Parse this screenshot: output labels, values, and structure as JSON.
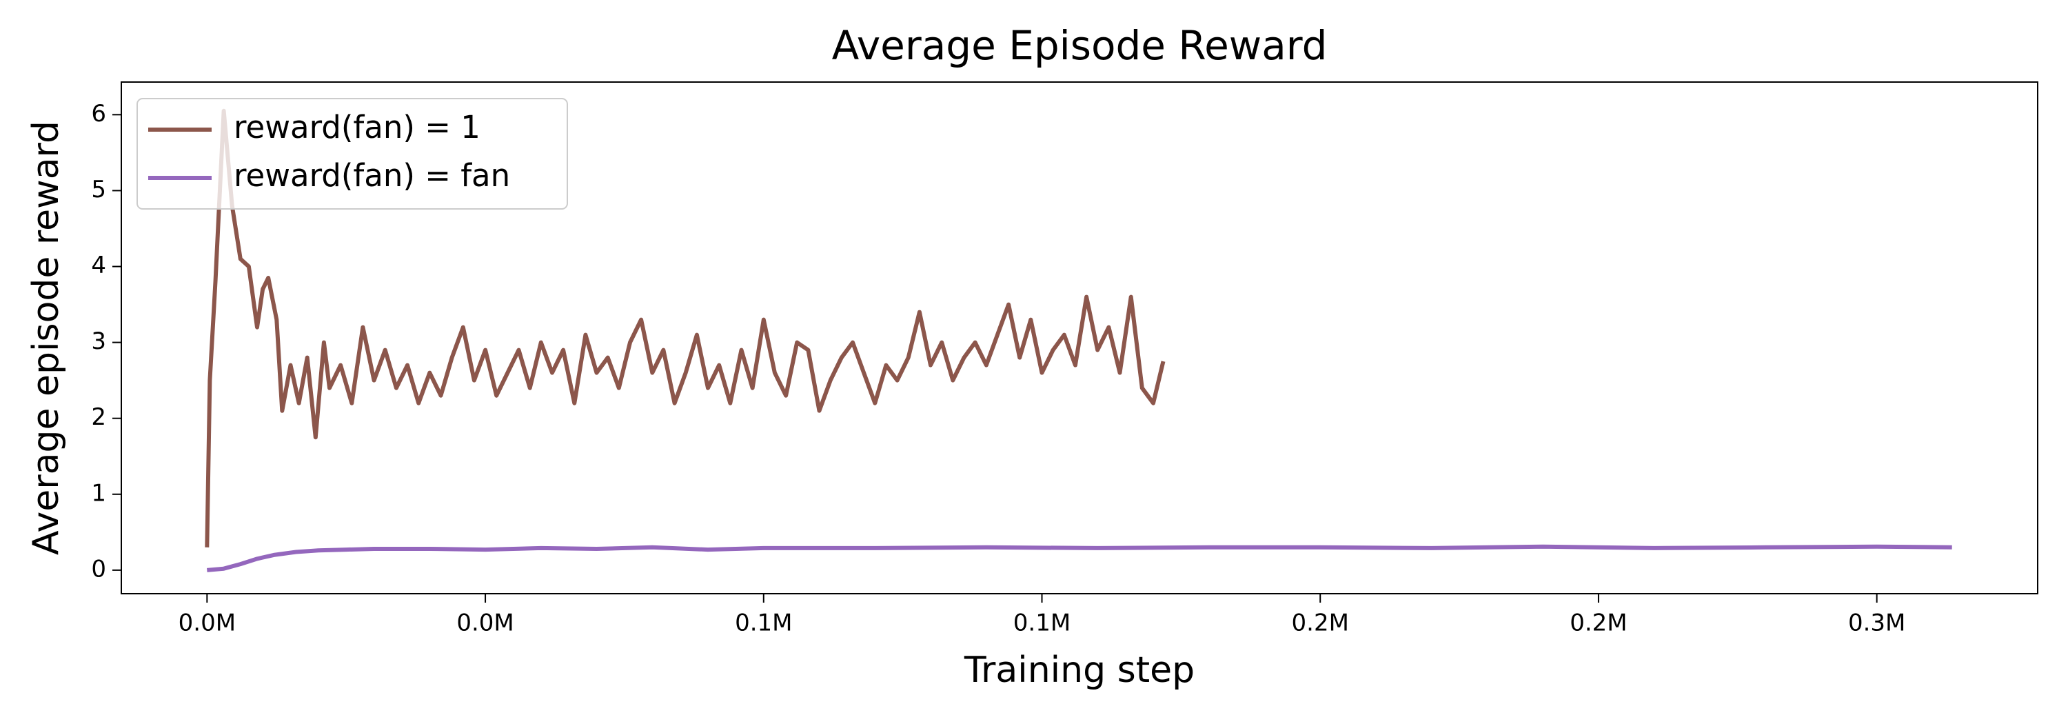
{
  "chart_data": {
    "type": "line",
    "title": "Average Episode Reward",
    "xlabel": "Training step",
    "ylabel": "Average episode reward",
    "xlim": [
      -15400,
      328900
    ],
    "ylim": [
      -0.31,
      6.43
    ],
    "xticks": [
      {
        "value": 0,
        "label": "0.0M"
      },
      {
        "value": 50000,
        "label": "0.0M"
      },
      {
        "value": 100000,
        "label": "0.1M"
      },
      {
        "value": 150000,
        "label": "0.1M"
      },
      {
        "value": 200000,
        "label": "0.2M"
      },
      {
        "value": 250000,
        "label": "0.2M"
      },
      {
        "value": 300000,
        "label": "0.3M"
      }
    ],
    "yticks": [
      0,
      1,
      2,
      3,
      4,
      5,
      6
    ],
    "grid": false,
    "legend": "upper left",
    "series": [
      {
        "name": "reward(fan) = 1",
        "color": "#8c564b",
        "x": [
          0,
          500,
          1500,
          3000,
          4500,
          6000,
          7500,
          9000,
          10000,
          11000,
          12500,
          13500,
          15000,
          16500,
          18000,
          19500,
          21000,
          22000,
          24000,
          26000,
          28000,
          30000,
          32000,
          34000,
          36000,
          38000,
          40000,
          42000,
          44000,
          46000,
          48000,
          50000,
          52000,
          54000,
          56000,
          58000,
          60000,
          62000,
          64000,
          66000,
          68000,
          70000,
          72000,
          74000,
          76000,
          78000,
          80000,
          82000,
          84000,
          86000,
          88000,
          90000,
          92000,
          94000,
          96000,
          98000,
          100000,
          102000,
          104000,
          106000,
          108000,
          110000,
          112000,
          114000,
          116000,
          118000,
          120000,
          122000,
          124000,
          126000,
          128000,
          130000,
          132000,
          134000,
          136000,
          138000,
          140000,
          142000,
          144000,
          146000,
          148000,
          150000,
          152000,
          154000,
          156000,
          158000,
          160000,
          162000,
          164000,
          166000,
          168000,
          170000,
          171800
        ],
        "values": [
          0.3,
          2.5,
          3.8,
          6.05,
          4.8,
          4.1,
          4.0,
          3.2,
          3.7,
          3.85,
          3.3,
          2.1,
          2.7,
          2.2,
          2.8,
          1.75,
          3.0,
          2.4,
          2.7,
          2.2,
          3.2,
          2.5,
          2.9,
          2.4,
          2.7,
          2.2,
          2.6,
          2.3,
          2.8,
          3.2,
          2.5,
          2.9,
          2.3,
          2.6,
          2.9,
          2.4,
          3.0,
          2.6,
          2.9,
          2.2,
          3.1,
          2.6,
          2.8,
          2.4,
          3.0,
          3.3,
          2.6,
          2.9,
          2.2,
          2.6,
          3.1,
          2.4,
          2.7,
          2.2,
          2.9,
          2.4,
          3.3,
          2.6,
          2.3,
          3.0,
          2.9,
          2.1,
          2.5,
          2.8,
          3.0,
          2.6,
          2.2,
          2.7,
          2.5,
          2.8,
          3.4,
          2.7,
          3.0,
          2.5,
          2.8,
          3.0,
          2.7,
          3.1,
          3.5,
          2.8,
          3.3,
          2.6,
          2.9,
          3.1,
          2.7,
          3.6,
          2.9,
          3.2,
          2.6,
          3.6,
          2.4,
          2.2,
          2.75
        ]
      },
      {
        "name": "reward(fan) = fan",
        "color": "#9467bd",
        "x": [
          0,
          3000,
          6000,
          9000,
          12000,
          16000,
          20000,
          25000,
          30000,
          40000,
          50000,
          60000,
          70000,
          80000,
          90000,
          100000,
          120000,
          140000,
          160000,
          180000,
          200000,
          220000,
          240000,
          260000,
          280000,
          300000,
          313500
        ],
        "values": [
          0.0,
          0.02,
          0.08,
          0.15,
          0.2,
          0.24,
          0.26,
          0.27,
          0.28,
          0.28,
          0.27,
          0.29,
          0.28,
          0.3,
          0.27,
          0.29,
          0.29,
          0.3,
          0.29,
          0.3,
          0.3,
          0.29,
          0.31,
          0.29,
          0.3,
          0.31,
          0.3
        ]
      }
    ]
  }
}
